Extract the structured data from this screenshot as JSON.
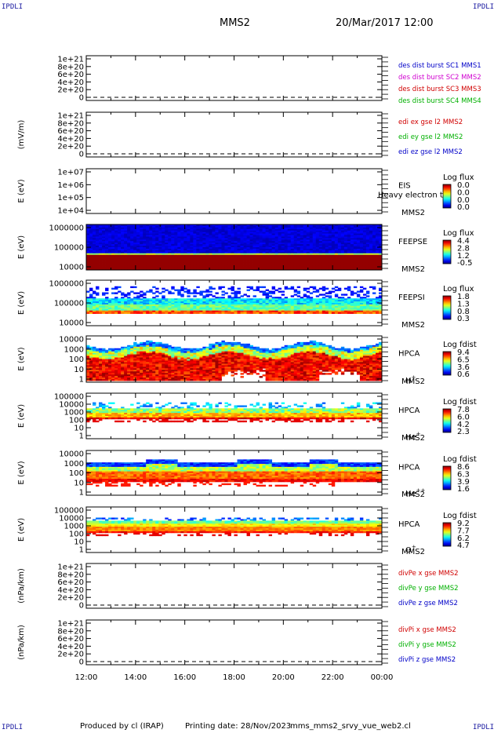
{
  "header": {
    "corner_label": "IPDLI",
    "spacecraft": "MMS2",
    "datetime": "20/Mar/2017 12:00"
  },
  "footer": {
    "produced_by": "Produced by cl (IRAP)",
    "printing_date": "Printing date: 28/Nov/2023",
    "filename": "mms_mms2_srvy_vue_web2.cl"
  },
  "colors": {
    "blue": "#0000c8",
    "magenta": "#d000d0",
    "red": "#d00000",
    "green": "#00b000"
  },
  "chart_data": {
    "type": "heatmap",
    "xaxis": {
      "ticks": [
        "12:00",
        "14:00",
        "16:00",
        "18:00",
        "20:00",
        "22:00",
        "00:00"
      ],
      "range_hours": [
        12,
        24
      ]
    },
    "panels": [
      {
        "id": "des-dist",
        "kind": "line",
        "ylabel": "",
        "yticks": [
          "1e+21",
          "8e+20",
          "6e+20",
          "4e+20",
          "2e+20",
          "0"
        ],
        "legend": [
          {
            "text": "des dist burst SC1 MMS1",
            "color": "#0000c8"
          },
          {
            "text": "des dist burst SC2 MMS2",
            "color": "#d000d0"
          },
          {
            "text": "des dist burst SC3 MMS3",
            "color": "#d00000"
          },
          {
            "text": "des dist burst SC4 MMS4",
            "color": "#00b000"
          }
        ]
      },
      {
        "id": "edi",
        "kind": "line",
        "ylabel": "(mV/m)",
        "yticks": [
          "1e+21",
          "8e+20",
          "6e+20",
          "4e+20",
          "2e+20",
          "0"
        ],
        "legend": [
          {
            "text": "edi ex gse l2 MMS2",
            "color": "#d00000"
          },
          {
            "text": "edi ey gse l2 MMS2",
            "color": "#00b000"
          },
          {
            "text": "edi ez gse l2 MMS2",
            "color": "#0000c8"
          }
        ]
      },
      {
        "id": "eis",
        "kind": "spec",
        "ylabel": "E (eV)",
        "yticks": [
          "1e+07",
          "1e+06",
          "1e+05",
          "1e+04"
        ],
        "instrument": "EIS",
        "sc": "MMS2",
        "overlay": "Heavy electron to",
        "cbar_title": "Log flux",
        "cbar_values": [
          "0.0",
          "0.0",
          "0.0",
          "0.0"
        ]
      },
      {
        "id": "feepse",
        "kind": "spec",
        "ylabel": "E (eV)",
        "yticks": [
          "1000000",
          "100000",
          "10000"
        ],
        "instrument": "FEEPSE",
        "sc": "MMS2",
        "cbar_title": "Log flux",
        "cbar_values": [
          "4.4",
          "2.8",
          "1.2",
          "-0.5"
        ]
      },
      {
        "id": "feepsi",
        "kind": "spec",
        "ylabel": "E (eV)",
        "yticks": [
          "1000000",
          "100000",
          "10000"
        ],
        "instrument": "FEEPSI",
        "sc": "MMS2",
        "cbar_title": "Log flux",
        "cbar_values": [
          "1.8",
          "1.3",
          "0.8",
          "0.3"
        ]
      },
      {
        "id": "hpca-h",
        "kind": "spec",
        "ylabel": "E (eV)",
        "yticks": [
          "10000",
          "1000",
          "100",
          "10",
          "1"
        ],
        "instrument": "HPCA",
        "sc": "MMS2",
        "species": "H",
        "species_sup": "+",
        "cbar_title": "Log fdist",
        "cbar_values": [
          "9.4",
          "6.5",
          "3.6",
          "0.6"
        ]
      },
      {
        "id": "hpca-he",
        "kind": "spec",
        "ylabel": "E (eV)",
        "yticks": [
          "100000",
          "10000",
          "1000",
          "100",
          "10",
          "1"
        ],
        "instrument": "HPCA",
        "sc": "MMS2",
        "species": "He",
        "species_sup": "+",
        "cbar_title": "Log fdist",
        "cbar_values": [
          "7.8",
          "6.0",
          "4.2",
          "2.3"
        ]
      },
      {
        "id": "hpca-hepp",
        "kind": "spec",
        "ylabel": "E (eV)",
        "yticks": [
          "10000",
          "1000",
          "100",
          "10",
          "1"
        ],
        "instrument": "HPCA",
        "sc": "MMS2",
        "species": "He",
        "species_sup": "++",
        "cbar_title": "Log fdist",
        "cbar_values": [
          "8.6",
          "6.3",
          "3.9",
          "1.6"
        ]
      },
      {
        "id": "hpca-o",
        "kind": "spec",
        "ylabel": "E (eV)",
        "yticks": [
          "100000",
          "10000",
          "1000",
          "100",
          "10",
          "1"
        ],
        "instrument": "HPCA",
        "sc": "MMS2",
        "species": "O",
        "species_sup": "+",
        "cbar_title": "Log fdist",
        "cbar_values": [
          "9.2",
          "7.7",
          "6.2",
          "4.7"
        ]
      },
      {
        "id": "divpe",
        "kind": "line",
        "ylabel": "(nPa/km)",
        "yticks": [
          "1e+21",
          "8e+20",
          "6e+20",
          "4e+20",
          "2e+20",
          "0"
        ],
        "legend": [
          {
            "text": "divPe x gse MMS2",
            "color": "#d00000"
          },
          {
            "text": "divPe y gse MMS2",
            "color": "#00b000"
          },
          {
            "text": "divPe z gse MMS2",
            "color": "#0000c8"
          }
        ]
      },
      {
        "id": "divpi",
        "kind": "line",
        "ylabel": "(nPa/km)",
        "yticks": [
          "1e+21",
          "8e+20",
          "6e+20",
          "4e+20",
          "2e+20",
          "0"
        ],
        "legend": [
          {
            "text": "divPi x gse MMS2",
            "color": "#d00000"
          },
          {
            "text": "divPi y gse MMS2",
            "color": "#00b000"
          },
          {
            "text": "divPi z gse MMS2",
            "color": "#0000c8"
          }
        ]
      }
    ]
  }
}
